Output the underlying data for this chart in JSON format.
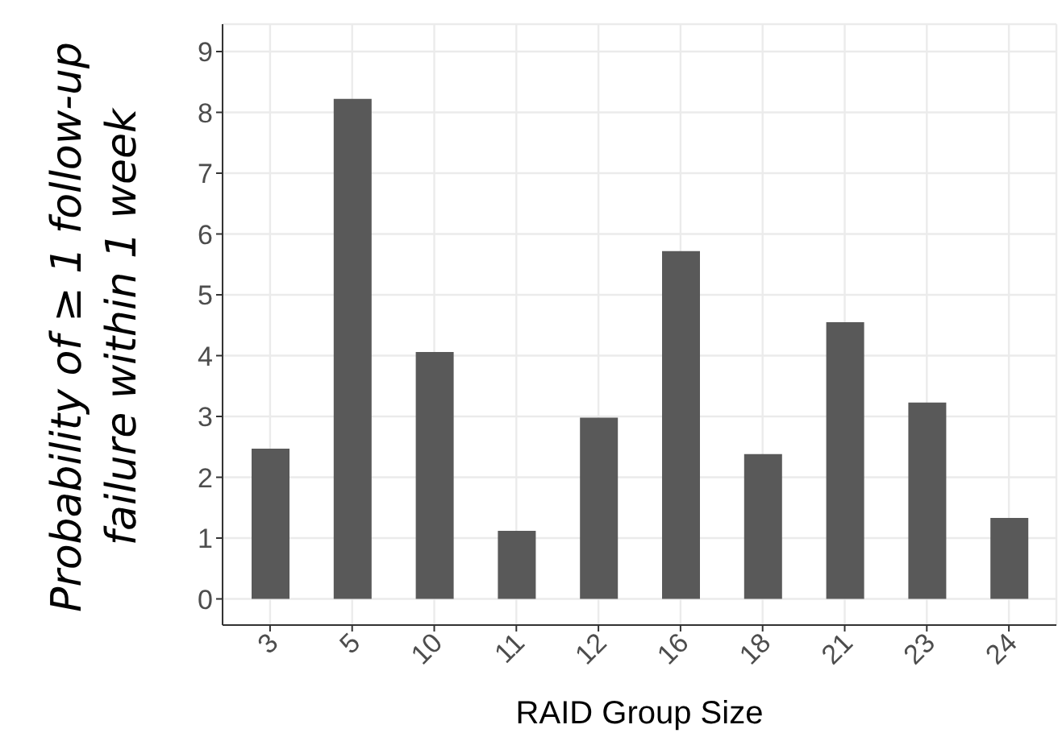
{
  "chart_data": {
    "type": "bar",
    "xlabel": "RAID Group Size",
    "ylabel": "Probability of ≥ 1 follow-up failure within 1 week",
    "categories": [
      "3",
      "5",
      "10",
      "11",
      "12",
      "16",
      "18",
      "21",
      "23",
      "24"
    ],
    "values": [
      2.47,
      8.22,
      4.06,
      1.12,
      2.98,
      5.72,
      2.38,
      4.55,
      3.23,
      1.33
    ],
    "color": "#595959",
    "ylim": [
      -0.43,
      9.45
    ],
    "yticks": [
      0,
      1,
      2,
      3,
      4,
      5,
      6,
      7,
      8,
      9
    ],
    "grid": true
  }
}
